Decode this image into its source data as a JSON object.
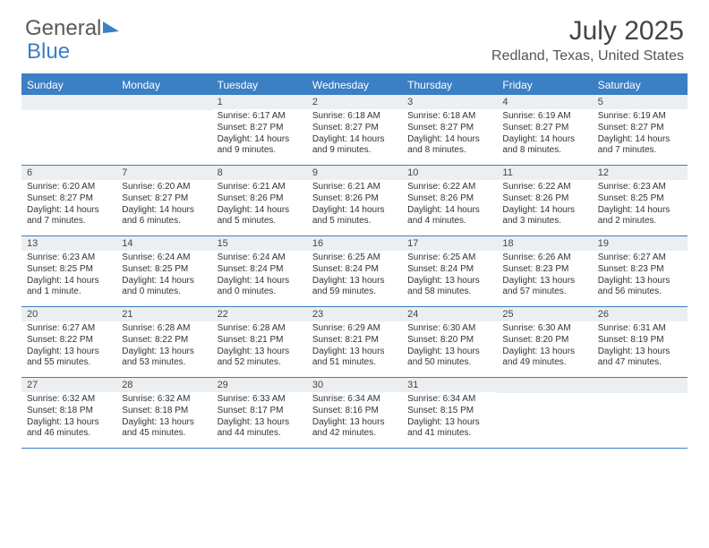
{
  "logo": {
    "word1": "General",
    "word2": "Blue"
  },
  "title": "July 2025",
  "location": "Redland, Texas, United States",
  "colors": {
    "accent": "#3b7fc4",
    "num_bar": "#eceff2",
    "text": "#333333",
    "header_text": "#555555"
  },
  "day_names": [
    "Sunday",
    "Monday",
    "Tuesday",
    "Wednesday",
    "Thursday",
    "Friday",
    "Saturday"
  ],
  "sunrise_label": "Sunrise: ",
  "sunset_label": "Sunset: ",
  "daylight_label": "Daylight: ",
  "weeks": [
    [
      null,
      null,
      {
        "n": "1",
        "sr": "6:17 AM",
        "ss": "8:27 PM",
        "dl": "14 hours and 9 minutes."
      },
      {
        "n": "2",
        "sr": "6:18 AM",
        "ss": "8:27 PM",
        "dl": "14 hours and 9 minutes."
      },
      {
        "n": "3",
        "sr": "6:18 AM",
        "ss": "8:27 PM",
        "dl": "14 hours and 8 minutes."
      },
      {
        "n": "4",
        "sr": "6:19 AM",
        "ss": "8:27 PM",
        "dl": "14 hours and 8 minutes."
      },
      {
        "n": "5",
        "sr": "6:19 AM",
        "ss": "8:27 PM",
        "dl": "14 hours and 7 minutes."
      }
    ],
    [
      {
        "n": "6",
        "sr": "6:20 AM",
        "ss": "8:27 PM",
        "dl": "14 hours and 7 minutes."
      },
      {
        "n": "7",
        "sr": "6:20 AM",
        "ss": "8:27 PM",
        "dl": "14 hours and 6 minutes."
      },
      {
        "n": "8",
        "sr": "6:21 AM",
        "ss": "8:26 PM",
        "dl": "14 hours and 5 minutes."
      },
      {
        "n": "9",
        "sr": "6:21 AM",
        "ss": "8:26 PM",
        "dl": "14 hours and 5 minutes."
      },
      {
        "n": "10",
        "sr": "6:22 AM",
        "ss": "8:26 PM",
        "dl": "14 hours and 4 minutes."
      },
      {
        "n": "11",
        "sr": "6:22 AM",
        "ss": "8:26 PM",
        "dl": "14 hours and 3 minutes."
      },
      {
        "n": "12",
        "sr": "6:23 AM",
        "ss": "8:25 PM",
        "dl": "14 hours and 2 minutes."
      }
    ],
    [
      {
        "n": "13",
        "sr": "6:23 AM",
        "ss": "8:25 PM",
        "dl": "14 hours and 1 minute."
      },
      {
        "n": "14",
        "sr": "6:24 AM",
        "ss": "8:25 PM",
        "dl": "14 hours and 0 minutes."
      },
      {
        "n": "15",
        "sr": "6:24 AM",
        "ss": "8:24 PM",
        "dl": "14 hours and 0 minutes."
      },
      {
        "n": "16",
        "sr": "6:25 AM",
        "ss": "8:24 PM",
        "dl": "13 hours and 59 minutes."
      },
      {
        "n": "17",
        "sr": "6:25 AM",
        "ss": "8:24 PM",
        "dl": "13 hours and 58 minutes."
      },
      {
        "n": "18",
        "sr": "6:26 AM",
        "ss": "8:23 PM",
        "dl": "13 hours and 57 minutes."
      },
      {
        "n": "19",
        "sr": "6:27 AM",
        "ss": "8:23 PM",
        "dl": "13 hours and 56 minutes."
      }
    ],
    [
      {
        "n": "20",
        "sr": "6:27 AM",
        "ss": "8:22 PM",
        "dl": "13 hours and 55 minutes."
      },
      {
        "n": "21",
        "sr": "6:28 AM",
        "ss": "8:22 PM",
        "dl": "13 hours and 53 minutes."
      },
      {
        "n": "22",
        "sr": "6:28 AM",
        "ss": "8:21 PM",
        "dl": "13 hours and 52 minutes."
      },
      {
        "n": "23",
        "sr": "6:29 AM",
        "ss": "8:21 PM",
        "dl": "13 hours and 51 minutes."
      },
      {
        "n": "24",
        "sr": "6:30 AM",
        "ss": "8:20 PM",
        "dl": "13 hours and 50 minutes."
      },
      {
        "n": "25",
        "sr": "6:30 AM",
        "ss": "8:20 PM",
        "dl": "13 hours and 49 minutes."
      },
      {
        "n": "26",
        "sr": "6:31 AM",
        "ss": "8:19 PM",
        "dl": "13 hours and 47 minutes."
      }
    ],
    [
      {
        "n": "27",
        "sr": "6:32 AM",
        "ss": "8:18 PM",
        "dl": "13 hours and 46 minutes."
      },
      {
        "n": "28",
        "sr": "6:32 AM",
        "ss": "8:18 PM",
        "dl": "13 hours and 45 minutes."
      },
      {
        "n": "29",
        "sr": "6:33 AM",
        "ss": "8:17 PM",
        "dl": "13 hours and 44 minutes."
      },
      {
        "n": "30",
        "sr": "6:34 AM",
        "ss": "8:16 PM",
        "dl": "13 hours and 42 minutes."
      },
      {
        "n": "31",
        "sr": "6:34 AM",
        "ss": "8:15 PM",
        "dl": "13 hours and 41 minutes."
      },
      null,
      null
    ]
  ]
}
